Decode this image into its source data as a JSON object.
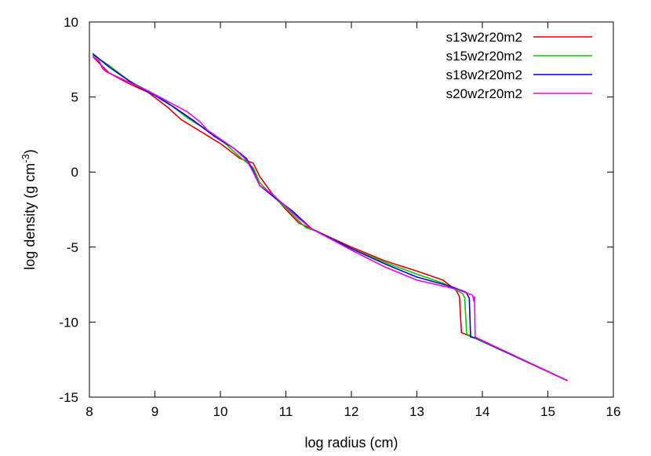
{
  "chart_data": {
    "type": "line",
    "title": "",
    "xlabel": "log radius (cm)",
    "ylabel_main": "log density (g cm",
    "ylabel_exp": "-3",
    "ylabel_close": ")",
    "xlim": [
      8,
      16
    ],
    "ylim": [
      -15,
      10
    ],
    "xticks": [
      8,
      9,
      10,
      11,
      12,
      13,
      14,
      15,
      16
    ],
    "yticks": [
      -15,
      -10,
      -5,
      0,
      5,
      10
    ],
    "grid": false,
    "legend_position": "top-right",
    "series": [
      {
        "name": "s13w2r20m2",
        "color": "#e00000",
        "points": [
          [
            8.05,
            7.7
          ],
          [
            8.3,
            6.6
          ],
          [
            8.6,
            5.9
          ],
          [
            8.9,
            5.3
          ],
          [
            9.2,
            4.3
          ],
          [
            9.4,
            3.5
          ],
          [
            9.7,
            2.7
          ],
          [
            10.0,
            1.9
          ],
          [
            10.3,
            0.9
          ],
          [
            10.5,
            0.6
          ],
          [
            10.6,
            -0.3
          ],
          [
            10.8,
            -1.5
          ],
          [
            11.0,
            -2.5
          ],
          [
            11.2,
            -3.4
          ],
          [
            11.4,
            -3.8
          ],
          [
            12.0,
            -5.0
          ],
          [
            12.5,
            -5.9
          ],
          [
            13.0,
            -6.6
          ],
          [
            13.4,
            -7.2
          ],
          [
            13.6,
            -7.9
          ],
          [
            13.65,
            -8.3
          ],
          [
            13.68,
            -10.7
          ],
          [
            13.85,
            -11.0
          ],
          [
            15.3,
            -13.9
          ]
        ]
      },
      {
        "name": "s15w2r20m2",
        "color": "#00cc00",
        "points": [
          [
            8.05,
            7.8
          ],
          [
            8.3,
            7.1
          ],
          [
            8.6,
            6.1
          ],
          [
            8.9,
            5.4
          ],
          [
            9.2,
            4.6
          ],
          [
            9.5,
            3.6
          ],
          [
            9.8,
            2.8
          ],
          [
            10.1,
            1.8
          ],
          [
            10.3,
            1.0
          ],
          [
            10.5,
            0.3
          ],
          [
            10.6,
            -0.7
          ],
          [
            10.8,
            -1.6
          ],
          [
            11.0,
            -2.4
          ],
          [
            11.3,
            -3.7
          ],
          [
            11.5,
            -4.0
          ],
          [
            12.0,
            -5.1
          ],
          [
            12.5,
            -6.0
          ],
          [
            13.0,
            -6.8
          ],
          [
            13.4,
            -7.4
          ],
          [
            13.7,
            -8.1
          ],
          [
            13.73,
            -8.4
          ],
          [
            13.76,
            -10.8
          ],
          [
            13.85,
            -11.0
          ],
          [
            15.3,
            -13.9
          ]
        ]
      },
      {
        "name": "s18w2r20m2",
        "color": "#0000dd",
        "points": [
          [
            8.05,
            7.9
          ],
          [
            8.3,
            7.0
          ],
          [
            8.7,
            5.8
          ],
          [
            9.0,
            5.1
          ],
          [
            9.3,
            4.3
          ],
          [
            9.6,
            3.4
          ],
          [
            9.9,
            2.4
          ],
          [
            10.2,
            1.6
          ],
          [
            10.4,
            0.9
          ],
          [
            10.5,
            0.1
          ],
          [
            10.6,
            -0.9
          ],
          [
            10.8,
            -1.6
          ],
          [
            11.1,
            -2.6
          ],
          [
            11.4,
            -3.8
          ],
          [
            12.0,
            -5.1
          ],
          [
            12.5,
            -6.1
          ],
          [
            13.0,
            -7.0
          ],
          [
            13.5,
            -7.6
          ],
          [
            13.75,
            -8.0
          ],
          [
            13.8,
            -8.4
          ],
          [
            13.82,
            -11.0
          ],
          [
            13.9,
            -11.05
          ],
          [
            15.3,
            -13.9
          ]
        ]
      },
      {
        "name": "s20w2r20m2",
        "color": "#ee00ee",
        "points": [
          [
            8.05,
            7.7
          ],
          [
            8.15,
            7.4
          ],
          [
            8.2,
            6.9
          ],
          [
            8.25,
            6.7
          ],
          [
            8.5,
            6.2
          ],
          [
            8.9,
            5.4
          ],
          [
            9.2,
            4.7
          ],
          [
            9.5,
            4.0
          ],
          [
            9.7,
            3.3
          ],
          [
            9.8,
            2.8
          ],
          [
            10.0,
            2.2
          ],
          [
            10.2,
            1.6
          ],
          [
            10.4,
            0.8
          ],
          [
            10.5,
            0.0
          ],
          [
            10.6,
            -0.9
          ],
          [
            10.8,
            -1.5
          ],
          [
            11.0,
            -2.3
          ],
          [
            11.2,
            -3.1
          ],
          [
            11.4,
            -3.8
          ],
          [
            12.0,
            -5.2
          ],
          [
            12.5,
            -6.3
          ],
          [
            13.0,
            -7.2
          ],
          [
            13.6,
            -7.8
          ],
          [
            13.85,
            -8.2
          ],
          [
            13.87,
            -8.6
          ],
          [
            13.88,
            -8.3
          ],
          [
            13.89,
            -11.0
          ],
          [
            15.3,
            -13.9
          ]
        ]
      }
    ]
  }
}
